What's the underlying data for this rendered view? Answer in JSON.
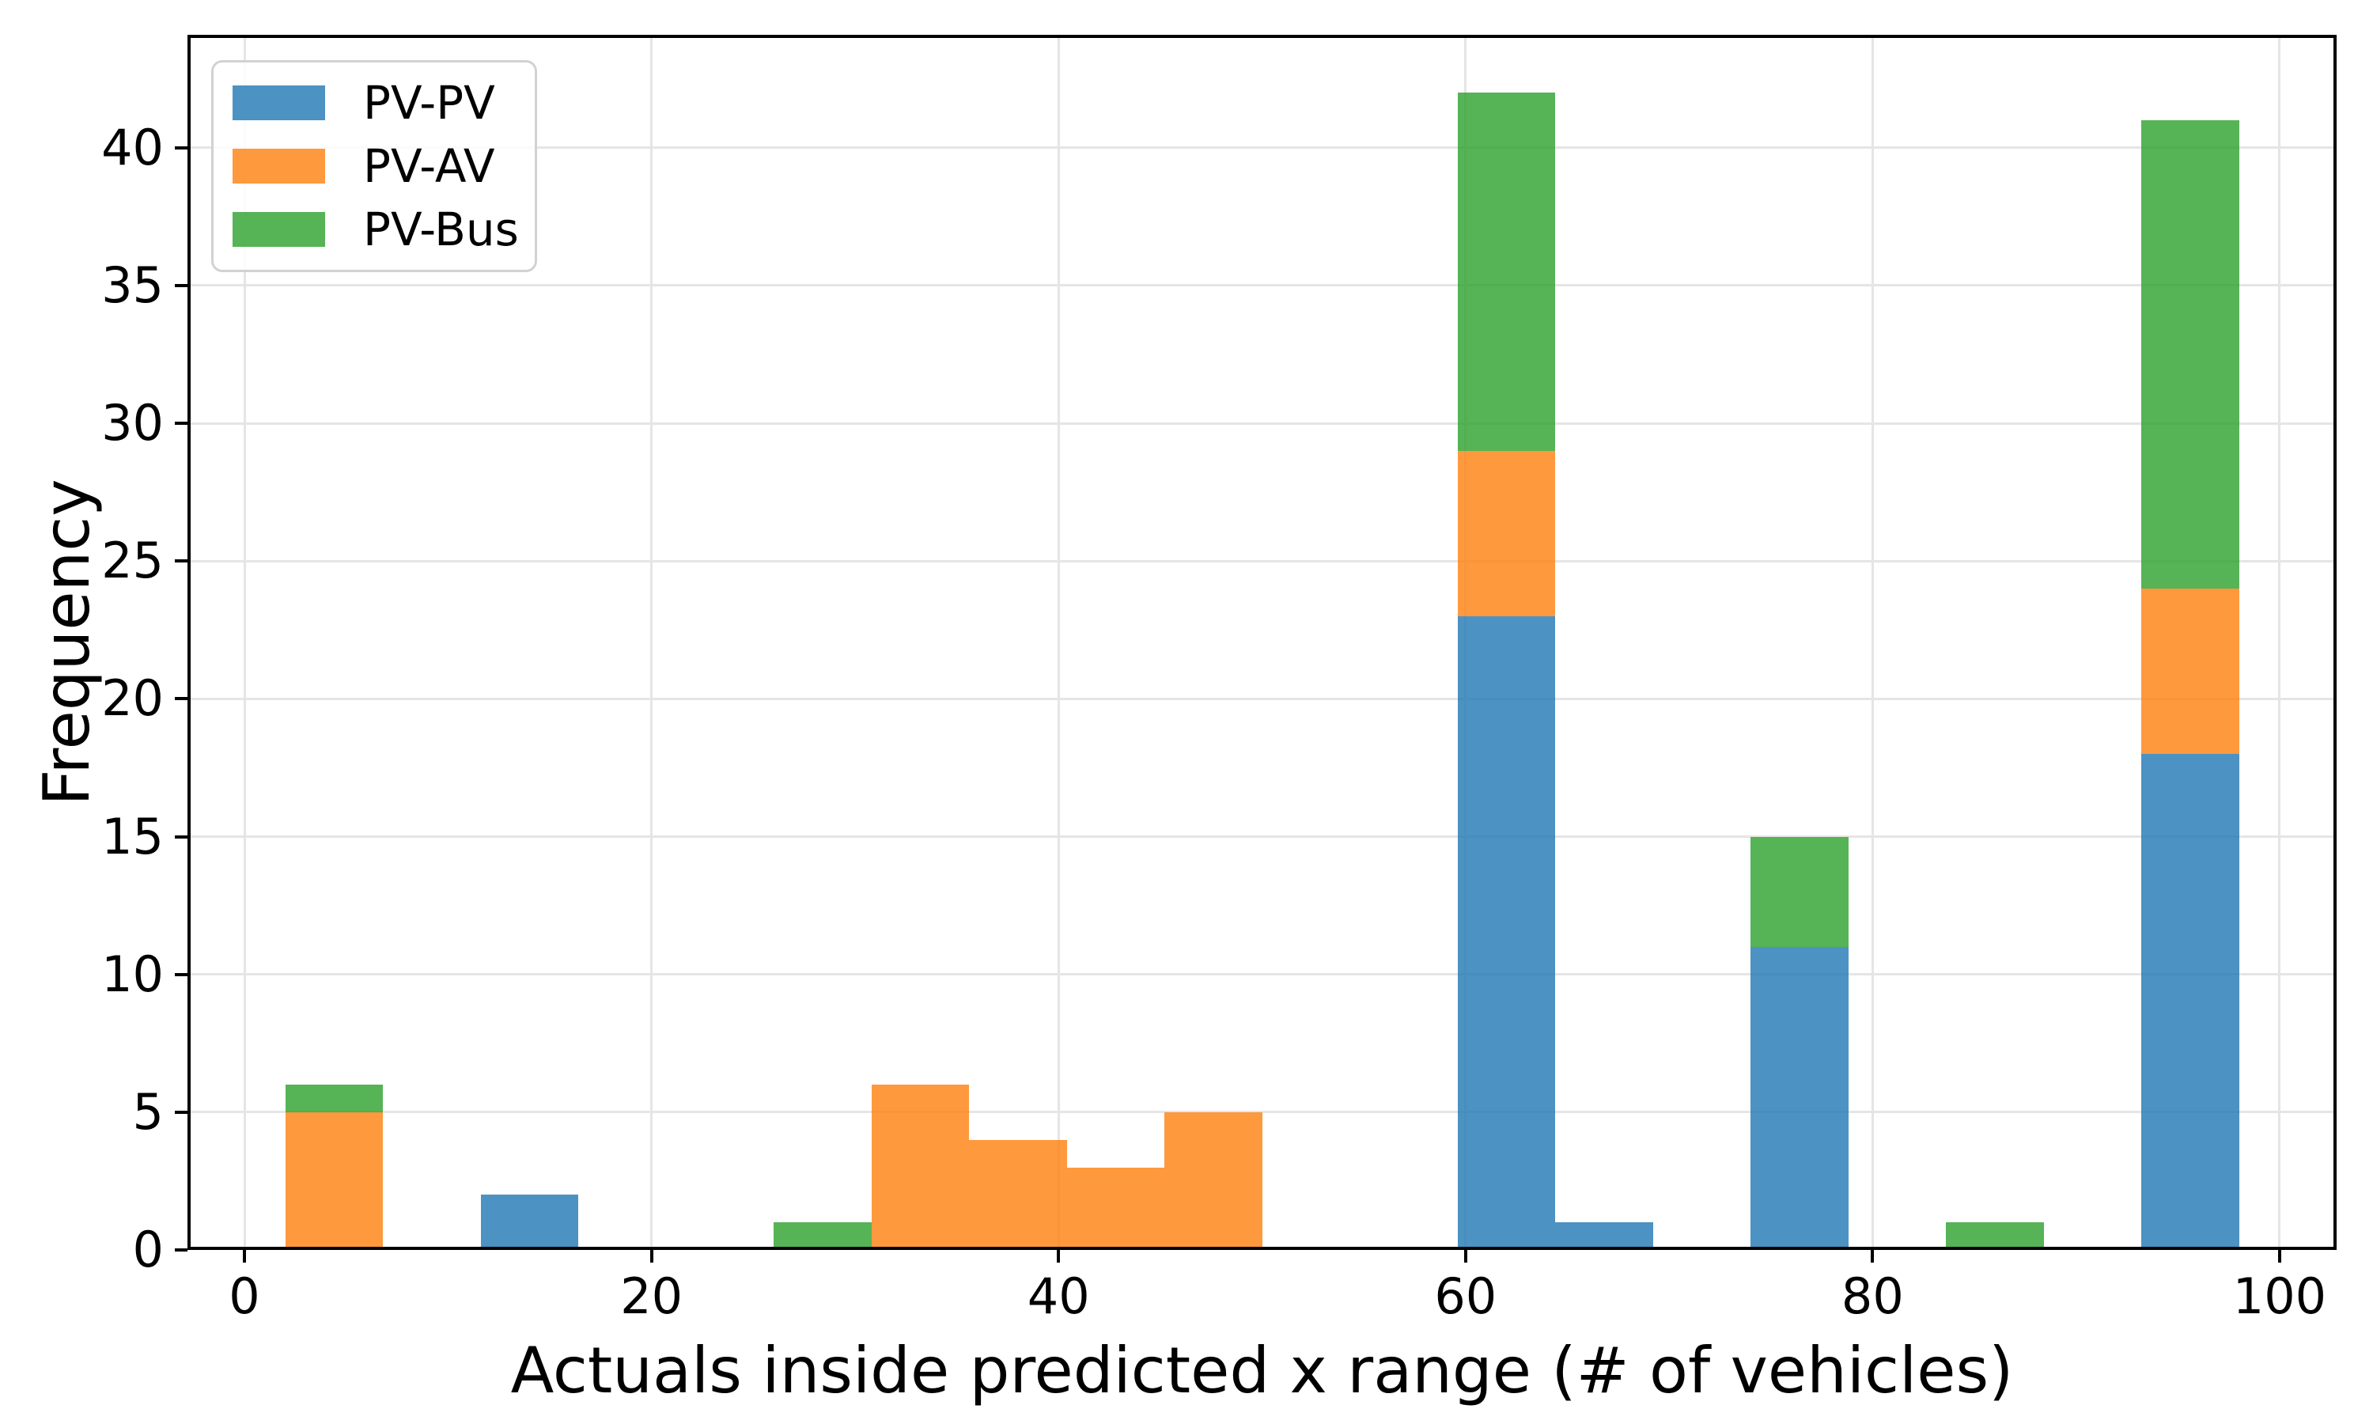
{
  "chart_data": {
    "type": "bar",
    "subtype": "stacked-histogram",
    "xlabel": "Actuals inside predicted x range (# of vehicles)",
    "ylabel": "Frequency",
    "bin_edges": [
      2.0,
      6.8,
      11.6,
      16.4,
      21.2,
      26.0,
      30.8,
      35.6,
      40.4,
      45.2,
      50.0,
      54.8,
      59.6,
      64.4,
      69.2,
      74.0,
      78.8,
      83.6,
      88.4,
      93.2,
      98.0
    ],
    "series": [
      {
        "name": "PV-PV",
        "color": "#1f77b4",
        "alpha": 0.8,
        "values": [
          0,
          0,
          2,
          0,
          0,
          0,
          0,
          0,
          0,
          0,
          0,
          0,
          23,
          1,
          0,
          11,
          0,
          0,
          0,
          18
        ]
      },
      {
        "name": "PV-AV",
        "color": "#ff7f0e",
        "alpha": 0.8,
        "values": [
          5,
          0,
          0,
          0,
          0,
          0,
          6,
          4,
          3,
          5,
          0,
          0,
          6,
          0,
          0,
          0,
          0,
          0,
          0,
          6
        ]
      },
      {
        "name": "PV-Bus",
        "color": "#2ca02c",
        "alpha": 0.8,
        "values": [
          1,
          0,
          0,
          0,
          0,
          1,
          0,
          0,
          0,
          0,
          0,
          0,
          13,
          0,
          0,
          4,
          0,
          1,
          0,
          17
        ]
      }
    ],
    "bin_totals": [
      6,
      0,
      2,
      0,
      0,
      1,
      6,
      4,
      3,
      5,
      0,
      0,
      42,
      1,
      0,
      15,
      0,
      1,
      0,
      41
    ],
    "xticks": [
      0,
      20,
      40,
      60,
      80,
      100
    ],
    "yticks": [
      0,
      5,
      10,
      15,
      20,
      25,
      30,
      35,
      40
    ],
    "xlim": [
      -2.8,
      102.8
    ],
    "ylim": [
      0,
      44.1
    ],
    "grid": true,
    "legend_position": "upper left"
  },
  "style": {
    "background": "#ffffff",
    "grid_color": "#e5e5e5",
    "spine_color": "#000000",
    "legend_border_color": "#d2d2d2",
    "blended_series_hex": [
      "#4c92c3",
      "#ff993f",
      "#56b356"
    ]
  }
}
